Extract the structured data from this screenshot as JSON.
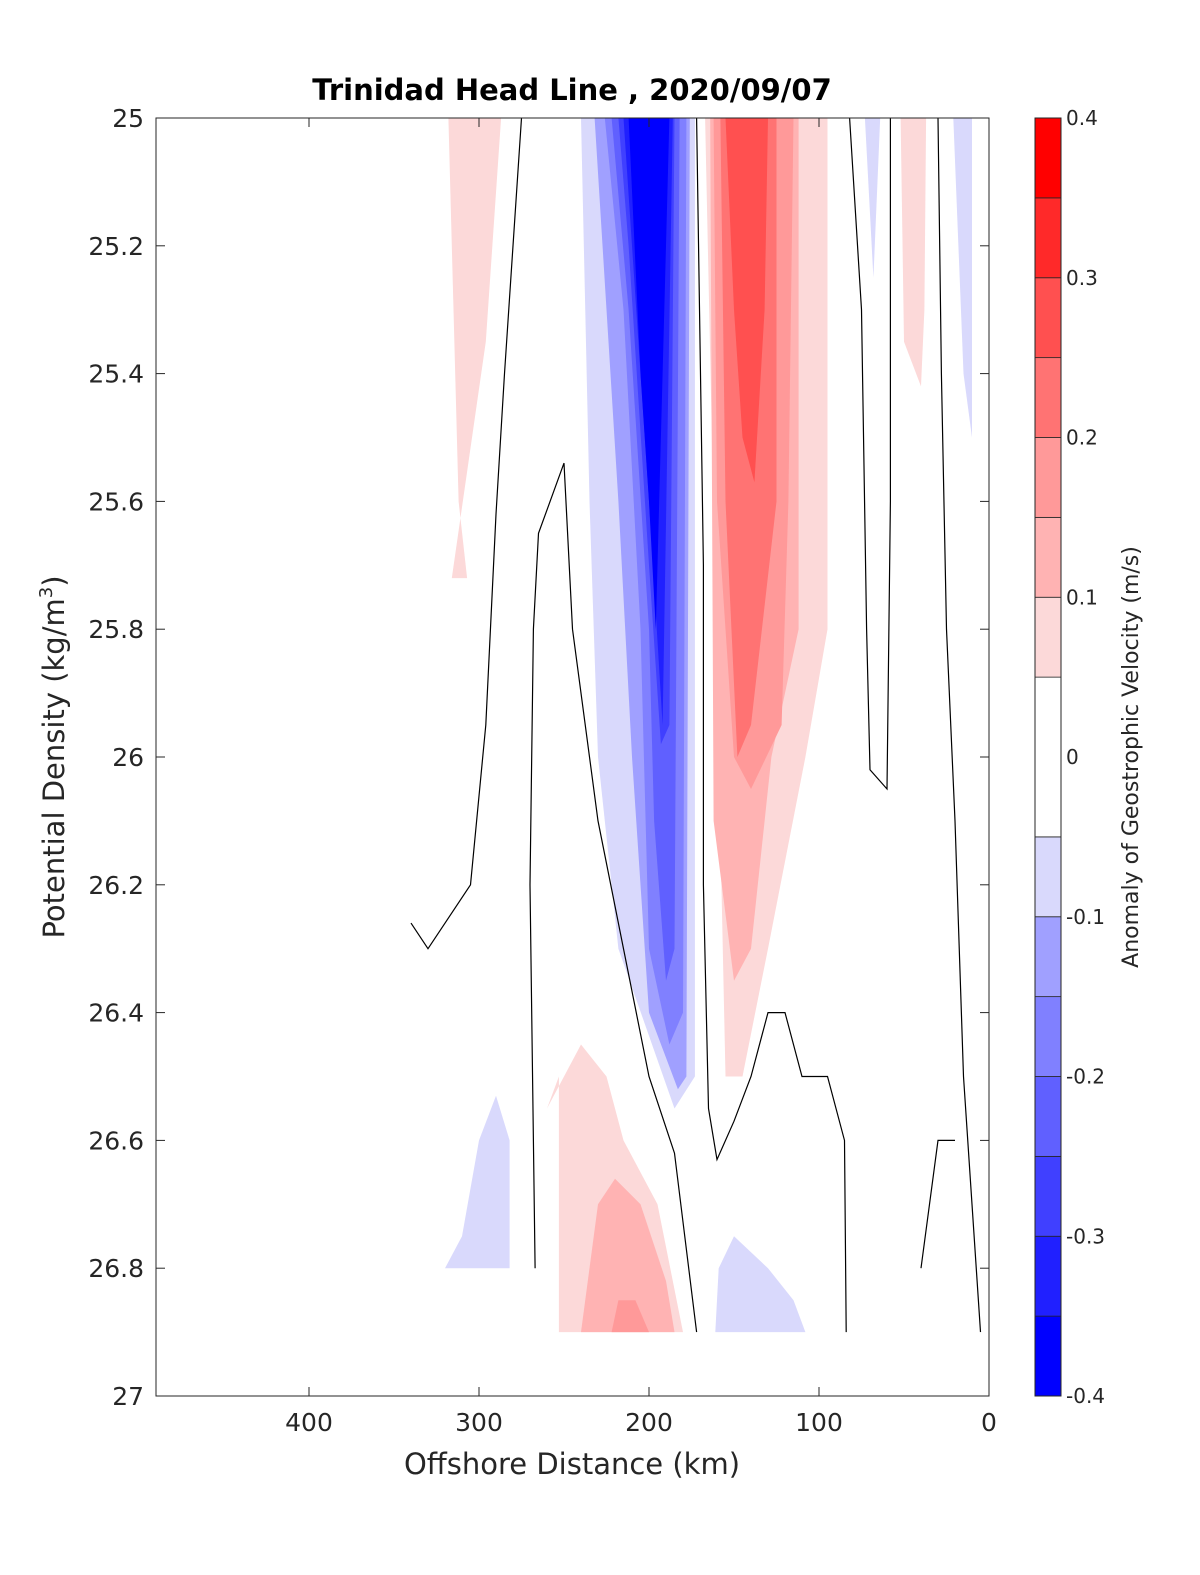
{
  "chart_data": {
    "type": "contour",
    "title": "Trinidad Head Line , 2020/09/07",
    "xlabel": "Offshore Distance (km)",
    "ylabel_main": "Potential Density (kg/m",
    "ylabel_sup": "3",
    "ylabel_close": ")",
    "xlim": [
      490,
      0
    ],
    "ylim": [
      25,
      27
    ],
    "x_reversed": true,
    "y_reversed": true,
    "x_ticks": [
      {
        "value": 400,
        "label": "400"
      },
      {
        "value": 300,
        "label": "300"
      },
      {
        "value": 200,
        "label": "200"
      },
      {
        "value": 100,
        "label": "100"
      },
      {
        "value": 0,
        "label": "0"
      }
    ],
    "y_ticks": [
      {
        "value": 25,
        "label": "25"
      },
      {
        "value": 25.2,
        "label": "25.2"
      },
      {
        "value": 25.4,
        "label": "25.4"
      },
      {
        "value": 25.6,
        "label": "25.6"
      },
      {
        "value": 25.8,
        "label": "25.8"
      },
      {
        "value": 26,
        "label": "26"
      },
      {
        "value": 26.2,
        "label": "26.2"
      },
      {
        "value": 26.4,
        "label": "26.4"
      },
      {
        "value": 26.6,
        "label": "26.6"
      },
      {
        "value": 26.8,
        "label": "26.8"
      },
      {
        "value": 27,
        "label": "27"
      }
    ],
    "colorbar": {
      "title": "Anomaly of Geostrophic Velocity (m/s)",
      "range": [
        -0.4,
        0.4
      ],
      "levels": [
        {
          "from": -0.4,
          "to": -0.35,
          "color": "#0000ff"
        },
        {
          "from": -0.35,
          "to": -0.3,
          "color": "#2020ff"
        },
        {
          "from": -0.3,
          "to": -0.25,
          "color": "#4040ff"
        },
        {
          "from": -0.25,
          "to": -0.2,
          "color": "#6060ff"
        },
        {
          "from": -0.2,
          "to": -0.15,
          "color": "#8080ff"
        },
        {
          "from": -0.15,
          "to": -0.1,
          "color": "#a0a0ff"
        },
        {
          "from": -0.1,
          "to": -0.05,
          "color": "#d9d9fc"
        },
        {
          "from": -0.05,
          "to": 0.05,
          "color": "#ffffff"
        },
        {
          "from": 0.05,
          "to": 0.1,
          "color": "#fcd9d9"
        },
        {
          "from": 0.1,
          "to": 0.15,
          "color": "#ffb3b3"
        },
        {
          "from": 0.15,
          "to": 0.2,
          "color": "#ff9999"
        },
        {
          "from": 0.2,
          "to": 0.25,
          "color": "#ff7373"
        },
        {
          "from": 0.25,
          "to": 0.3,
          "color": "#ff5050"
        },
        {
          "from": 0.3,
          "to": 0.35,
          "color": "#ff2929"
        },
        {
          "from": 0.35,
          "to": 0.4,
          "color": "#ff0000"
        }
      ],
      "ticks": [
        {
          "value": 0.4,
          "label": "0.4"
        },
        {
          "value": 0.3,
          "label": "0.3"
        },
        {
          "value": 0.2,
          "label": "0.2"
        },
        {
          "value": 0.1,
          "label": "0.1"
        },
        {
          "value": 0,
          "label": "0"
        },
        {
          "value": -0.1,
          "label": "-0.1"
        },
        {
          "value": -0.2,
          "label": "-0.2"
        },
        {
          "value": -0.3,
          "label": "-0.3"
        },
        {
          "value": -0.4,
          "label": "-0.4"
        }
      ]
    },
    "filled_regions": [
      {
        "level": 0.075,
        "color": "#fcd9d9",
        "points": [
          [
            287,
            25
          ],
          [
            318,
            25
          ],
          [
            312,
            25.6
          ],
          [
            307,
            25.72
          ],
          [
            316,
            25.72
          ],
          [
            296,
            25.35
          ],
          [
            287,
            25
          ]
        ]
      },
      {
        "level": -0.075,
        "color": "#d9d9fc",
        "points": [
          [
            240,
            25
          ],
          [
            173,
            25
          ],
          [
            173,
            26.5
          ],
          [
            185,
            26.55
          ],
          [
            218,
            26.3
          ],
          [
            230,
            26.0
          ],
          [
            235,
            25.6
          ],
          [
            240,
            25
          ]
        ]
      },
      {
        "level": -0.125,
        "color": "#a0a0ff",
        "points": [
          [
            232,
            25
          ],
          [
            176,
            25
          ],
          [
            178,
            26.5
          ],
          [
            183,
            26.52
          ],
          [
            200,
            26.4
          ],
          [
            210,
            26.0
          ],
          [
            218,
            25.6
          ],
          [
            232,
            25
          ]
        ]
      },
      {
        "level": -0.175,
        "color": "#8080ff",
        "points": [
          [
            226,
            25
          ],
          [
            178,
            25
          ],
          [
            180,
            26.4
          ],
          [
            188,
            26.45
          ],
          [
            200,
            26.3
          ],
          [
            205,
            25.8
          ],
          [
            215,
            25.3
          ],
          [
            226,
            25
          ]
        ]
      },
      {
        "level": -0.225,
        "color": "#6060ff",
        "points": [
          [
            222,
            25
          ],
          [
            182,
            25
          ],
          [
            185,
            26.3
          ],
          [
            190,
            26.35
          ],
          [
            197,
            26.1
          ],
          [
            200,
            25.8
          ],
          [
            212,
            25.3
          ],
          [
            222,
            25
          ]
        ]
      },
      {
        "level": -0.275,
        "color": "#4040ff",
        "points": [
          [
            218,
            25
          ],
          [
            185,
            25
          ],
          [
            188,
            25.95
          ],
          [
            193,
            25.98
          ],
          [
            200,
            25.7
          ],
          [
            212,
            25.2
          ],
          [
            218,
            25
          ]
        ]
      },
      {
        "level": -0.325,
        "color": "#2020ff",
        "points": [
          [
            215,
            25
          ],
          [
            186,
            25
          ],
          [
            192,
            25.95
          ],
          [
            200,
            25.6
          ],
          [
            215,
            25
          ]
        ]
      },
      {
        "level": -0.375,
        "color": "#0000ff",
        "points": [
          [
            212,
            25
          ],
          [
            188,
            25
          ],
          [
            196,
            25.8
          ],
          [
            200,
            25.6
          ],
          [
            205,
            25.4
          ],
          [
            212,
            25
          ]
        ]
      },
      {
        "level": 0.075,
        "color": "#fcd9d9",
        "points": [
          [
            167,
            25
          ],
          [
            95,
            25
          ],
          [
            95,
            25.8
          ],
          [
            108,
            26.0
          ],
          [
            130,
            26.3
          ],
          [
            145,
            26.5
          ],
          [
            155,
            26.5
          ],
          [
            167,
            25
          ]
        ]
      },
      {
        "level": 0.125,
        "color": "#ffb3b3",
        "points": [
          [
            164,
            25
          ],
          [
            112,
            25
          ],
          [
            112,
            25.8
          ],
          [
            128,
            26.0
          ],
          [
            140,
            26.3
          ],
          [
            150,
            26.35
          ],
          [
            162,
            26.1
          ],
          [
            164,
            25
          ]
        ]
      },
      {
        "level": 0.175,
        "color": "#ff9999",
        "points": [
          [
            162,
            25
          ],
          [
            115,
            25
          ],
          [
            118,
            25.6
          ],
          [
            122,
            25.95
          ],
          [
            140,
            26.05
          ],
          [
            150,
            26.0
          ],
          [
            160,
            25.6
          ],
          [
            162,
            25
          ]
        ]
      },
      {
        "level": 0.225,
        "color": "#ff7373",
        "points": [
          [
            158,
            25
          ],
          [
            125,
            25
          ],
          [
            125,
            25.6
          ],
          [
            140,
            25.95
          ],
          [
            148,
            26.0
          ],
          [
            155,
            25.6
          ],
          [
            158,
            25
          ]
        ]
      },
      {
        "level": 0.275,
        "color": "#ff5050",
        "points": [
          [
            155,
            25
          ],
          [
            130,
            25
          ],
          [
            132,
            25.3
          ],
          [
            138,
            25.57
          ],
          [
            145,
            25.5
          ],
          [
            150,
            25.3
          ],
          [
            155,
            25
          ]
        ]
      },
      {
        "level": 0.075,
        "color": "#fcd9d9",
        "points": [
          [
            52,
            25
          ],
          [
            37,
            25
          ],
          [
            38,
            25.3
          ],
          [
            40,
            25.42
          ],
          [
            50,
            25.35
          ],
          [
            52,
            25
          ]
        ]
      },
      {
        "level": -0.075,
        "color": "#d9d9fc",
        "points": [
          [
            73,
            25
          ],
          [
            64,
            25
          ],
          [
            68,
            25.25
          ],
          [
            73,
            25
          ]
        ]
      },
      {
        "level": -0.075,
        "color": "#d9d9fc",
        "points": [
          [
            21,
            25
          ],
          [
            10,
            25
          ],
          [
            10,
            25.5
          ],
          [
            15,
            25.4
          ],
          [
            21,
            25
          ]
        ]
      },
      {
        "level": -0.075,
        "color": "#d9d9fc",
        "points": [
          [
            333,
            26.9
          ],
          [
            320,
            26.8
          ],
          [
            282,
            26.8
          ],
          [
            282,
            26.6
          ],
          [
            290,
            26.53
          ],
          [
            300,
            26.6
          ],
          [
            310,
            26.75
          ],
          [
            320,
            26.8
          ],
          [
            333,
            26.9
          ]
        ]
      },
      {
        "level": 0.075,
        "color": "#fcd9d9",
        "points": [
          [
            253,
            26.9
          ],
          [
            253,
            26.5
          ],
          [
            260,
            26.55
          ],
          [
            240,
            26.45
          ],
          [
            225,
            26.5
          ],
          [
            215,
            26.6
          ],
          [
            195,
            26.7
          ],
          [
            180,
            26.9
          ],
          [
            253,
            26.9
          ]
        ]
      },
      {
        "level": 0.125,
        "color": "#ffb3b3",
        "points": [
          [
            240,
            26.9
          ],
          [
            230,
            26.7
          ],
          [
            220,
            26.66
          ],
          [
            205,
            26.7
          ],
          [
            190,
            26.82
          ],
          [
            185,
            26.9
          ],
          [
            240,
            26.9
          ]
        ]
      },
      {
        "level": 0.175,
        "color": "#ff9999",
        "points": [
          [
            222,
            26.9
          ],
          [
            218,
            26.85
          ],
          [
            208,
            26.85
          ],
          [
            200,
            26.9
          ],
          [
            222,
            26.9
          ]
        ]
      },
      {
        "level": -0.075,
        "color": "#d9d9fc",
        "points": [
          [
            161,
            26.9
          ],
          [
            159,
            26.8
          ],
          [
            150,
            26.75
          ],
          [
            130,
            26.8
          ],
          [
            115,
            26.85
          ],
          [
            108,
            26.9
          ],
          [
            161,
            26.9
          ]
        ]
      }
    ],
    "contour_lines": [
      [
        [
          340,
          26.26
        ],
        [
          330,
          26.3
        ],
        [
          305,
          26.2
        ],
        [
          296,
          25.95
        ],
        [
          290,
          25.62
        ],
        [
          285,
          25.4
        ],
        [
          280,
          25.2
        ],
        [
          275,
          25
        ]
      ],
      [
        [
          267,
          26.8
        ],
        [
          270,
          26.2
        ],
        [
          268,
          25.8
        ],
        [
          265,
          25.65
        ],
        [
          250,
          25.54
        ],
        [
          245,
          25.8
        ],
        [
          230,
          26.1
        ],
        [
          215,
          26.3
        ],
        [
          200,
          26.5
        ],
        [
          185,
          26.62
        ],
        [
          172,
          26.9
        ]
      ],
      [
        [
          172,
          25
        ],
        [
          168,
          25.7
        ],
        [
          168,
          26.2
        ],
        [
          165,
          26.55
        ],
        [
          160,
          26.63
        ],
        [
          150,
          26.57
        ],
        [
          140,
          26.5
        ],
        [
          130,
          26.4
        ],
        [
          120,
          26.4
        ],
        [
          110,
          26.5
        ],
        [
          100,
          26.5
        ],
        [
          95,
          26.5
        ],
        [
          85,
          26.6
        ],
        [
          84,
          26.9
        ]
      ],
      [
        [
          82,
          25
        ],
        [
          75,
          25.3
        ],
        [
          72,
          25.8
        ],
        [
          70,
          26.02
        ],
        [
          60,
          26.05
        ],
        [
          58,
          25.6
        ],
        [
          58,
          25
        ]
      ],
      [
        [
          30,
          25
        ],
        [
          28,
          25.4
        ],
        [
          25,
          25.8
        ],
        [
          20,
          26.1
        ],
        [
          15,
          26.5
        ],
        [
          10,
          26.7
        ],
        [
          5,
          26.9
        ]
      ],
      [
        [
          40,
          26.8
        ],
        [
          35,
          26.7
        ],
        [
          30,
          26.6
        ],
        [
          20,
          26.6
        ]
      ]
    ]
  }
}
